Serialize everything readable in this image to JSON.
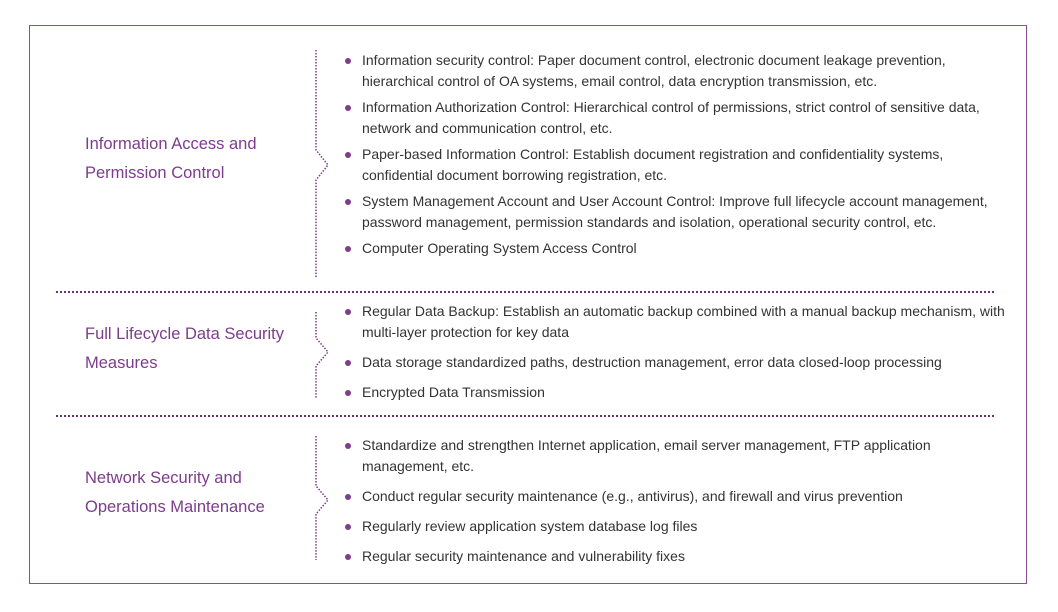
{
  "accent_color": "#7d3c8c",
  "sections": [
    {
      "label": "Information Access and Permission Control",
      "items": [
        "Information security control: Paper document control, electronic document leakage prevention, hierarchical control of OA systems, email control, data encryption transmission, etc.",
        "Information Authorization Control: Hierarchical control of permissions, strict control of sensitive data, network and communication control, etc.",
        "Paper-based Information Control: Establish document registration and confidentiality systems, confidential document borrowing registration, etc.",
        "System Management Account and User Account Control: Improve full lifecycle account management, password management, permission standards and isolation, operational security control, etc.",
        "Computer Operating System Access Control"
      ]
    },
    {
      "label": "Full Lifecycle Data Security Measures",
      "items": [
        "Regular Data Backup: Establish an automatic backup combined with a manual backup mechanism, with multi-layer protection for key data",
        "Data storage standardized paths, destruction management, error data closed-loop processing",
        "Encrypted Data Transmission"
      ]
    },
    {
      "label": "Network Security and Operations Maintenance",
      "items": [
        "Standardize and strengthen Internet application, email server management, FTP application management, etc.",
        "Conduct regular security maintenance (e.g., antivirus), and firewall and virus prevention",
        "Regularly review application system database log files",
        "Regular security maintenance and vulnerability fixes"
      ]
    }
  ]
}
